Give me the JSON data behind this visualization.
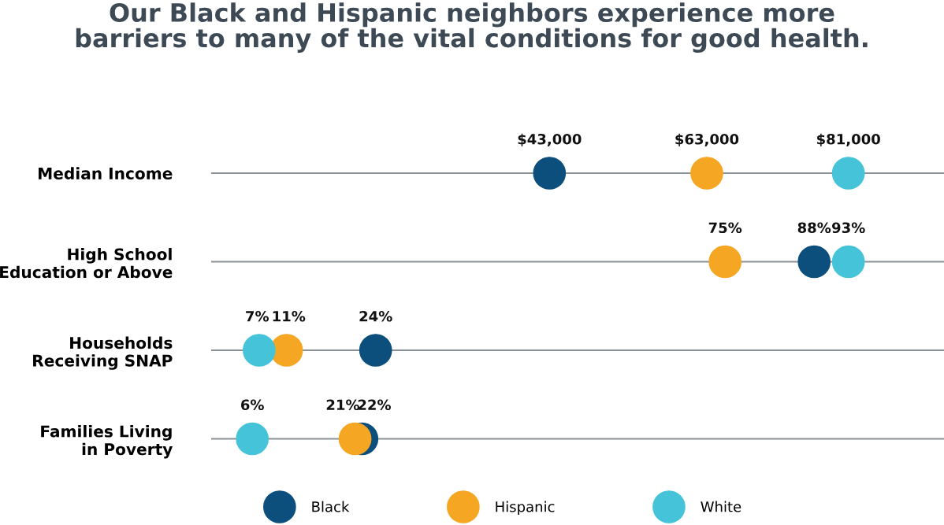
{
  "chart_data": [
    {
      "type": "other",
      "title": "Our Black and Hispanic neighbors experience more\nbarriers to many of the vital conditions for good health.",
      "categories": [
        "Median Income"
      ],
      "series": [
        {
          "color": "#0d4f7c",
          "values": [
            43000
          ],
          "value_labels": [
            "$43,000"
          ]
        },
        {
          "color": "#f5a623",
          "values": [
            63000
          ],
          "value_labels": [
            "$63,000"
          ]
        },
        {
          "color": "#45c3d9",
          "values": [
            81000
          ],
          "value_labels": [
            "$81,000"
          ]
        }
      ],
      "legend": false
    },
    {
      "type": "other",
      "categories": [
        "High School\nEducation or Above",
        "Households\nReceiving SNAP",
        "Families Living\nin Poverty"
      ],
      "series": [
        {
          "name": "Black",
          "color": "#0d4f7c",
          "values": [
            88,
            24,
            22
          ],
          "value_labels": [
            "88%",
            "24%",
            "22%"
          ]
        },
        {
          "name": "Hispanic",
          "color": "#f5a623",
          "values": [
            75,
            11,
            21
          ],
          "value_labels": [
            "75%",
            "11%",
            "21%"
          ]
        },
        {
          "name": "White",
          "color": "#45c3d9",
          "values": [
            93,
            7,
            6
          ],
          "value_labels": [
            "93%",
            "7%",
            "6%"
          ]
        }
      ],
      "legend": "bottom"
    }
  ]
}
